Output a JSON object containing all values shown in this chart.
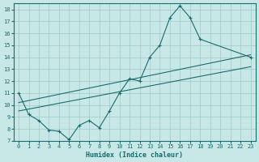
{
  "xlabel": "Humidex (Indice chaleur)",
  "ylabel": "",
  "xlim": [
    -0.5,
    23.5
  ],
  "ylim": [
    7,
    18.5
  ],
  "xticks": [
    0,
    1,
    2,
    3,
    4,
    5,
    6,
    7,
    8,
    9,
    10,
    11,
    12,
    13,
    14,
    15,
    16,
    17,
    18,
    19,
    20,
    21,
    22,
    23
  ],
  "yticks": [
    7,
    8,
    9,
    10,
    11,
    12,
    13,
    14,
    15,
    16,
    17,
    18
  ],
  "bg_color": "#c8e8e8",
  "line_color": "#1a6b6b",
  "grid_color": "#a0c8c8",
  "line1_x": [
    0,
    1,
    2,
    3,
    4,
    5,
    6,
    7,
    8,
    9,
    10,
    11,
    12,
    13,
    14,
    15,
    16,
    17,
    18,
    23
  ],
  "line1_y": [
    11.0,
    9.2,
    8.7,
    7.9,
    7.8,
    7.1,
    8.3,
    8.7,
    8.1,
    9.5,
    11.0,
    12.2,
    12.0,
    14.0,
    15.0,
    17.3,
    18.3,
    17.3,
    15.5,
    14.0
  ],
  "line2_x": [
    0,
    23
  ],
  "line2_y": [
    10.2,
    14.2
  ],
  "line3_x": [
    0,
    23
  ],
  "line3_y": [
    9.5,
    13.2
  ]
}
